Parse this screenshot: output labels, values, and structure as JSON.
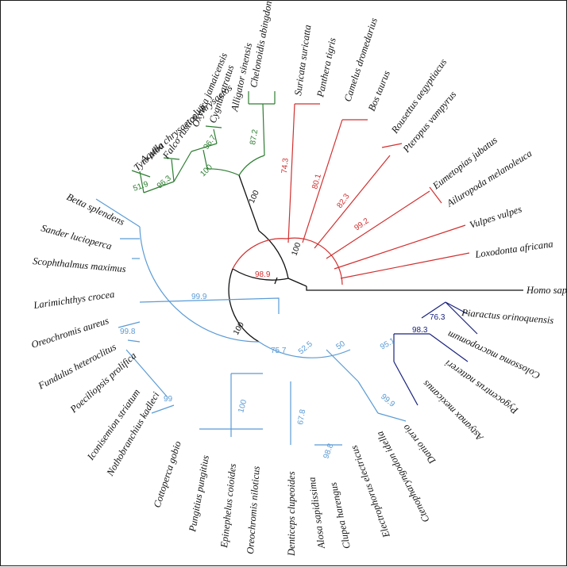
{
  "colors": {
    "birds": "#2e7d32",
    "mammals": "#d32f2f",
    "fish": "#5b9bd5",
    "characiformes": "#1a237e",
    "backbone": "#111111"
  },
  "taxa": {
    "chelonoidis": "Chelonoidis abingdonii",
    "alligator": "Alligator sinensis",
    "cygnus": "Cygnus atratus",
    "oxyura": "Oxyura jamaicensis",
    "falco": "Falco rusticolus",
    "aquila": "Aquila chrysaetos chrysaetos",
    "tyto": "Tyto alba",
    "suricata": "Suricata suricatta",
    "panthera": "Panthera tigris",
    "camelus": "Camelus dromedarius",
    "bos": "Bos taurus",
    "rousettus": "Rousettus aegyptiacus",
    "pteropus": "Pteropus vampyrus",
    "eumetopias": "Eumetopias jubatus",
    "ailuropoda": "Ailuropoda melanoleuca",
    "vulpes": "Vulpes vulpes",
    "loxodonta": "Loxodonta africana",
    "homo": "Homo sapiens",
    "betta": "Betta splendens",
    "sander": "Sander lucioperca",
    "scophthalmus": "Scophthalmus maximus",
    "larimichthys": "Larimichthys crocea",
    "oreochromis_a": "Oreochromis aureus",
    "fundulus": "Fundulus heteroclitus",
    "poeciliopsis": "Poeciliopsis prolifica",
    "iconisemion": "Iconisemion striatum",
    "nothobranchius": "Nothobranchius kadleci",
    "cottoperca": "Cottoperca gobio",
    "pungitius": "Pungitius pungitius",
    "epinephelus": "Epinephelus coioides",
    "oreochromis_n": "Oreochromis niloticus",
    "denticeps": "Denticeps clupeoides",
    "alosa": "Alosa sapidissima",
    "clupea": "Clupea harengus",
    "electrophorus": "Electrophorus electricus",
    "ctenopharyngodon": "Ctenopharyngodon idella",
    "danio": "Danio rerio",
    "astyanax": "Astyanax mexicanus",
    "pygocentrus": "Pygocentrus nattereri",
    "colossoma": "Colossoma macropomum",
    "piaractus": "Piaractus orinoquensis"
  },
  "support": {
    "birds_root": "100",
    "birds_main": "100",
    "turtle_croc": "87.2",
    "anseriformes": "96.7",
    "raptors": "96.3",
    "aquila_tyto": "51.9",
    "mammals_root": "98.9",
    "mammals_inner": "100",
    "carnivora_1": "74.3",
    "cetartio": "80.1",
    "chiroptera": "82.3",
    "carn_2": "99.2",
    "fish_root": "100",
    "percomorph": "99.9",
    "cyprinodont": "99.8",
    "killifish": "99",
    "acanth_2": "100",
    "otomorph": "75.7",
    "otophysi": "52.5",
    "clupeiformes": "67.8",
    "alosa_clupea": "98.8",
    "ostariophysi": "50",
    "characiformes": "95.1",
    "cyprinif": "99.9",
    "serrasalmid": "98.3",
    "piaractus_col": "76.3"
  }
}
